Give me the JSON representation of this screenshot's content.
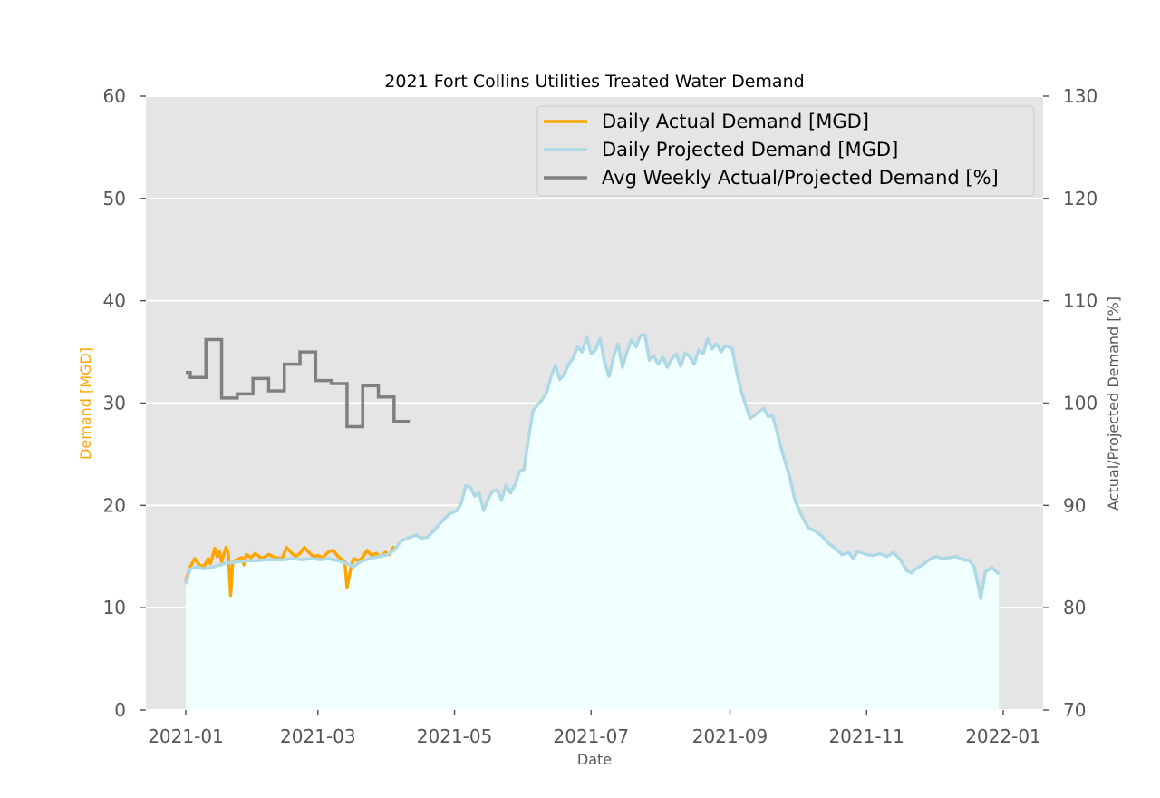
{
  "chart_data": {
    "type": "line",
    "title": "2021 Fort Collins Utilities Treated Water Demand",
    "xlabel": "Date",
    "ylabel_left": "Demand [MGD]",
    "ylabel_right": "Actual/Projected Demand [%]",
    "xlim": [
      "2021-01-01",
      "2022-01-01"
    ],
    "ylim_left": [
      0,
      60
    ],
    "ylim_right": [
      70,
      130
    ],
    "x_ticks": [
      "2021-01",
      "2021-03",
      "2021-05",
      "2021-07",
      "2021-09",
      "2021-11",
      "2022-01"
    ],
    "y_ticks_left": [
      "0",
      "10",
      "20",
      "30",
      "40",
      "50",
      "60"
    ],
    "y_ticks_right": [
      "70",
      "80",
      "90",
      "100",
      "110",
      "120",
      "130"
    ],
    "grid": true,
    "legend_position": "top-right",
    "colors": {
      "actual": "#FFA500",
      "projected": "#ADD8E6",
      "projected_fill": "#F0FFFF",
      "weekly_ratio": "#808080",
      "plot_background": "#E5E5E5",
      "left_axis_label": "#FFA500"
    },
    "series": [
      {
        "name": "Daily Actual Demand [MGD]",
        "axis": "left",
        "points": [
          [
            "2021-01-01",
            12.6
          ],
          [
            "2021-01-03",
            14.0
          ],
          [
            "2021-01-05",
            14.8
          ],
          [
            "2021-01-07",
            14.2
          ],
          [
            "2021-01-09",
            14.0
          ],
          [
            "2021-01-11",
            14.8
          ],
          [
            "2021-01-12",
            14.3
          ],
          [
            "2021-01-14",
            15.8
          ],
          [
            "2021-01-15",
            15.0
          ],
          [
            "2021-01-16",
            15.5
          ],
          [
            "2021-01-17",
            14.5
          ],
          [
            "2021-01-19",
            15.9
          ],
          [
            "2021-01-20",
            15.3
          ],
          [
            "2021-01-21",
            11.2
          ],
          [
            "2021-01-22",
            14.5
          ],
          [
            "2021-01-24",
            14.7
          ],
          [
            "2021-01-26",
            14.9
          ],
          [
            "2021-01-27",
            14.2
          ],
          [
            "2021-01-28",
            15.2
          ],
          [
            "2021-01-30",
            14.9
          ],
          [
            "2021-02-01",
            15.3
          ],
          [
            "2021-02-04",
            14.8
          ],
          [
            "2021-02-07",
            15.2
          ],
          [
            "2021-02-10",
            14.9
          ],
          [
            "2021-02-13",
            14.8
          ],
          [
            "2021-02-15",
            15.9
          ],
          [
            "2021-02-17",
            15.4
          ],
          [
            "2021-02-19",
            15.0
          ],
          [
            "2021-02-21",
            15.3
          ],
          [
            "2021-02-23",
            15.9
          ],
          [
            "2021-02-25",
            15.4
          ],
          [
            "2021-02-27",
            15.0
          ],
          [
            "2021-03-01",
            15.1
          ],
          [
            "2021-03-03",
            14.9
          ],
          [
            "2021-03-06",
            15.5
          ],
          [
            "2021-03-08",
            15.6
          ],
          [
            "2021-03-10",
            15.0
          ],
          [
            "2021-03-13",
            14.5
          ],
          [
            "2021-03-14",
            12.0
          ],
          [
            "2021-03-16",
            14.2
          ],
          [
            "2021-03-17",
            14.8
          ],
          [
            "2021-03-19",
            14.6
          ],
          [
            "2021-03-21",
            14.9
          ],
          [
            "2021-03-23",
            15.6
          ],
          [
            "2021-03-25",
            15.1
          ],
          [
            "2021-03-27",
            15.3
          ],
          [
            "2021-03-29",
            15.0
          ],
          [
            "2021-03-31",
            15.4
          ],
          [
            "2021-04-02",
            15.2
          ],
          [
            "2021-04-04",
            16.0
          ]
        ]
      },
      {
        "name": "Daily Projected Demand [MGD]",
        "axis": "left",
        "filled": true,
        "points": [
          [
            "2021-01-01",
            12.3
          ],
          [
            "2021-01-03",
            13.8
          ],
          [
            "2021-01-06",
            14.0
          ],
          [
            "2021-01-09",
            13.8
          ],
          [
            "2021-01-12",
            13.9
          ],
          [
            "2021-01-15",
            14.1
          ],
          [
            "2021-01-18",
            14.3
          ],
          [
            "2021-01-21",
            14.4
          ],
          [
            "2021-01-25",
            14.5
          ],
          [
            "2021-01-29",
            14.6
          ],
          [
            "2021-02-02",
            14.6
          ],
          [
            "2021-02-06",
            14.7
          ],
          [
            "2021-02-10",
            14.7
          ],
          [
            "2021-02-14",
            14.7
          ],
          [
            "2021-02-18",
            14.8
          ],
          [
            "2021-02-22",
            14.7
          ],
          [
            "2021-02-26",
            14.8
          ],
          [
            "2021-03-02",
            14.7
          ],
          [
            "2021-03-06",
            14.8
          ],
          [
            "2021-03-10",
            14.6
          ],
          [
            "2021-03-14",
            14.3
          ],
          [
            "2021-03-17",
            14.0
          ],
          [
            "2021-03-20",
            14.5
          ],
          [
            "2021-03-24",
            14.8
          ],
          [
            "2021-03-28",
            15.0
          ],
          [
            "2021-04-01",
            15.2
          ],
          [
            "2021-04-04",
            15.6
          ],
          [
            "2021-04-07",
            16.5
          ],
          [
            "2021-04-10",
            16.8
          ],
          [
            "2021-04-14",
            17.1
          ],
          [
            "2021-04-16",
            16.8
          ],
          [
            "2021-04-19",
            16.9
          ],
          [
            "2021-04-22",
            17.6
          ],
          [
            "2021-04-26",
            18.6
          ],
          [
            "2021-04-29",
            19.2
          ],
          [
            "2021-05-02",
            19.5
          ],
          [
            "2021-05-04",
            20.2
          ],
          [
            "2021-05-06",
            21.9
          ],
          [
            "2021-05-08",
            21.8
          ],
          [
            "2021-05-10",
            20.9
          ],
          [
            "2021-05-12",
            21.2
          ],
          [
            "2021-05-14",
            19.5
          ],
          [
            "2021-05-16",
            20.6
          ],
          [
            "2021-05-18",
            21.4
          ],
          [
            "2021-05-20",
            21.5
          ],
          [
            "2021-05-22",
            20.5
          ],
          [
            "2021-05-24",
            22.0
          ],
          [
            "2021-05-26",
            21.2
          ],
          [
            "2021-05-28",
            22.0
          ],
          [
            "2021-05-30",
            23.3
          ],
          [
            "2021-06-01",
            23.5
          ],
          [
            "2021-06-03",
            26.5
          ],
          [
            "2021-06-05",
            29.2
          ],
          [
            "2021-06-07",
            29.8
          ],
          [
            "2021-06-09",
            30.3
          ],
          [
            "2021-06-11",
            31.0
          ],
          [
            "2021-06-13",
            32.5
          ],
          [
            "2021-06-15",
            33.7
          ],
          [
            "2021-06-17",
            32.3
          ],
          [
            "2021-06-19",
            32.8
          ],
          [
            "2021-06-21",
            33.8
          ],
          [
            "2021-06-23",
            34.4
          ],
          [
            "2021-06-25",
            35.5
          ],
          [
            "2021-06-27",
            35.0
          ],
          [
            "2021-06-29",
            36.5
          ],
          [
            "2021-07-01",
            34.8
          ],
          [
            "2021-07-03",
            35.2
          ],
          [
            "2021-07-05",
            36.3
          ],
          [
            "2021-07-07",
            34.0
          ],
          [
            "2021-07-09",
            32.6
          ],
          [
            "2021-07-11",
            34.5
          ],
          [
            "2021-07-13",
            35.8
          ],
          [
            "2021-07-15",
            33.5
          ],
          [
            "2021-07-17",
            35.0
          ],
          [
            "2021-07-19",
            36.2
          ],
          [
            "2021-07-21",
            35.5
          ],
          [
            "2021-07-23",
            36.6
          ],
          [
            "2021-07-25",
            36.7
          ],
          [
            "2021-07-27",
            34.2
          ],
          [
            "2021-07-29",
            34.6
          ],
          [
            "2021-07-31",
            33.8
          ],
          [
            "2021-08-02",
            34.5
          ],
          [
            "2021-08-04",
            33.5
          ],
          [
            "2021-08-06",
            34.3
          ],
          [
            "2021-08-08",
            34.8
          ],
          [
            "2021-08-10",
            33.6
          ],
          [
            "2021-08-12",
            34.9
          ],
          [
            "2021-08-14",
            34.5
          ],
          [
            "2021-08-16",
            33.8
          ],
          [
            "2021-08-18",
            35.2
          ],
          [
            "2021-08-20",
            34.8
          ],
          [
            "2021-08-22",
            36.3
          ],
          [
            "2021-08-24",
            35.3
          ],
          [
            "2021-08-26",
            35.8
          ],
          [
            "2021-08-28",
            35.0
          ],
          [
            "2021-08-30",
            35.6
          ],
          [
            "2021-09-02",
            35.3
          ],
          [
            "2021-09-04",
            33.0
          ],
          [
            "2021-09-06",
            31.2
          ],
          [
            "2021-09-08",
            29.8
          ],
          [
            "2021-09-10",
            28.5
          ],
          [
            "2021-09-12",
            28.8
          ],
          [
            "2021-09-14",
            29.2
          ],
          [
            "2021-09-16",
            29.5
          ],
          [
            "2021-09-18",
            28.7
          ],
          [
            "2021-09-20",
            28.8
          ],
          [
            "2021-09-22",
            27.2
          ],
          [
            "2021-09-24",
            25.5
          ],
          [
            "2021-09-26",
            24.0
          ],
          [
            "2021-09-28",
            22.5
          ],
          [
            "2021-09-30",
            20.5
          ],
          [
            "2021-10-03",
            19.0
          ],
          [
            "2021-10-06",
            17.8
          ],
          [
            "2021-10-09",
            17.5
          ],
          [
            "2021-10-12",
            17.0
          ],
          [
            "2021-10-15",
            16.3
          ],
          [
            "2021-10-18",
            15.8
          ],
          [
            "2021-10-21",
            15.2
          ],
          [
            "2021-10-24",
            15.4
          ],
          [
            "2021-10-26",
            14.8
          ],
          [
            "2021-10-28",
            15.5
          ],
          [
            "2021-11-01",
            15.2
          ],
          [
            "2021-11-04",
            15.1
          ],
          [
            "2021-11-07",
            15.3
          ],
          [
            "2021-11-10",
            15.0
          ],
          [
            "2021-11-13",
            15.4
          ],
          [
            "2021-11-16",
            14.7
          ],
          [
            "2021-11-19",
            13.6
          ],
          [
            "2021-11-21",
            13.4
          ],
          [
            "2021-11-23",
            13.8
          ],
          [
            "2021-11-26",
            14.2
          ],
          [
            "2021-11-29",
            14.7
          ],
          [
            "2021-12-02",
            15.0
          ],
          [
            "2021-12-05",
            14.8
          ],
          [
            "2021-12-08",
            14.9
          ],
          [
            "2021-12-11",
            15.0
          ],
          [
            "2021-12-14",
            14.7
          ],
          [
            "2021-12-17",
            14.6
          ],
          [
            "2021-12-19",
            14.0
          ],
          [
            "2021-12-21",
            12.0
          ],
          [
            "2021-12-22",
            10.9
          ],
          [
            "2021-12-24",
            13.5
          ],
          [
            "2021-12-27",
            13.9
          ],
          [
            "2021-12-30",
            13.3
          ]
        ]
      },
      {
        "name": "Avg Weekly Actual/Projected Demand [%]",
        "axis": "right",
        "step": true,
        "points": [
          [
            "2021-01-01",
            103.0
          ],
          [
            "2021-01-03",
            102.5
          ],
          [
            "2021-01-10",
            106.2
          ],
          [
            "2021-01-17",
            100.5
          ],
          [
            "2021-01-24",
            100.9
          ],
          [
            "2021-01-31",
            102.4
          ],
          [
            "2021-02-07",
            101.2
          ],
          [
            "2021-02-14",
            103.8
          ],
          [
            "2021-02-21",
            105.0
          ],
          [
            "2021-02-28",
            102.2
          ],
          [
            "2021-03-07",
            101.9
          ],
          [
            "2021-03-14",
            97.7
          ],
          [
            "2021-03-21",
            101.7
          ],
          [
            "2021-03-28",
            100.6
          ],
          [
            "2021-04-04",
            98.2
          ],
          [
            "2021-04-11",
            98.2
          ]
        ]
      }
    ]
  }
}
